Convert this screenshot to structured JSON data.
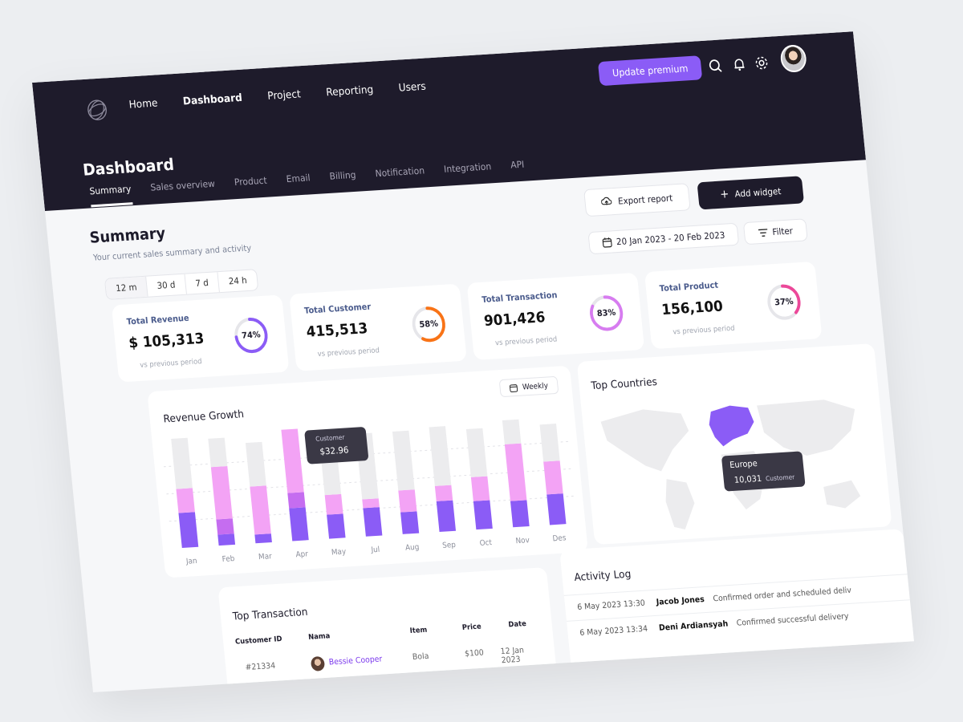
{
  "nav": {
    "items": [
      "Home",
      "Dashboard",
      "Project",
      "Reporting",
      "Users"
    ],
    "active": 1,
    "premium_label": "Update premium",
    "icons": [
      "search-icon",
      "bell-icon",
      "gear-icon"
    ]
  },
  "page": {
    "title": "Dashboard",
    "tabs": [
      "Summary",
      "Sales overview",
      "Product",
      "Email",
      "Billing",
      "Notification",
      "Integration",
      "API"
    ],
    "active_tab": 0
  },
  "summary": {
    "title": "Summary",
    "subtitle": "Your current sales summary and activity",
    "export_label": "Export report",
    "add_widget_label": "Add widget",
    "date_range": "20 Jan 2023 - 20 Feb 2023",
    "filter_label": "Filter",
    "periods": [
      "12 m",
      "30 d",
      "7 d",
      "24 h"
    ],
    "active_period": 0
  },
  "stats": [
    {
      "label": "Total Revenue",
      "value": "$ 105,313",
      "compare": "vs previous period",
      "percent": "74%",
      "fraction": 0.74,
      "color": "#8b5cf6"
    },
    {
      "label": "Total Customer",
      "value": "415,513",
      "compare": "vs previous period",
      "percent": "58%",
      "fraction": 0.58,
      "color": "#f97316"
    },
    {
      "label": "Total Transaction",
      "value": "901,426",
      "compare": "vs previous period",
      "percent": "83%",
      "fraction": 0.83,
      "color": "#d77cf0"
    },
    {
      "label": "Total Product",
      "value": "156,100",
      "compare": "vs previous period",
      "percent": "37%",
      "fraction": 0.37,
      "color": "#ec4899"
    }
  ],
  "revenue": {
    "title": "Revenue Growth",
    "weekly_label": "Weekly",
    "tooltip_label": "Customer",
    "tooltip_value": "$32.96"
  },
  "chart_data": {
    "type": "bar",
    "stacked": true,
    "title": "Revenue Growth",
    "categories": [
      "Jan",
      "Feb",
      "Mar",
      "Apr",
      "May",
      "Jul",
      "Aug",
      "Sep",
      "Oct",
      "Nov",
      "Des"
    ],
    "ylim": [
      0,
      100
    ],
    "grid": true,
    "series": [
      {
        "values": [
          32,
          10,
          8,
          30,
          22,
          26,
          20,
          28,
          26,
          24,
          28
        ],
        "color": "#8b5cf6"
      },
      {
        "values": [
          0,
          14,
          0,
          14,
          0,
          0,
          0,
          0,
          0,
          0,
          0
        ],
        "color": "#c56df0"
      },
      {
        "values": [
          22,
          48,
          44,
          58,
          18,
          8,
          20,
          14,
          22,
          52,
          30
        ],
        "color": "#f3a3f5"
      },
      {
        "values": [
          46,
          26,
          40,
          0,
          52,
          60,
          54,
          54,
          44,
          22,
          34
        ],
        "color": "#ececee"
      }
    ]
  },
  "countries": {
    "title": "Top Countries",
    "tooltip_region": "Europe",
    "tooltip_value": "10,031",
    "tooltip_label": "Customer",
    "highlight_color": "#8b5cf6"
  },
  "transaction": {
    "title": "Top Transaction",
    "columns": [
      "Customer ID",
      "Nama",
      "Item",
      "Price",
      "Date"
    ],
    "rows": [
      {
        "id": "#21334",
        "name": "Bessie Cooper",
        "item": "Bola",
        "price": "$100",
        "date": "12 Jan 2023"
      }
    ]
  },
  "activity": {
    "title": "Activity Log",
    "rows": [
      {
        "time": "6 May 2023 13:30",
        "who": "Jacob Jones",
        "what": "Confirmed order and scheduled deliv"
      },
      {
        "time": "6 May 2023 13:34",
        "who": "Deni Ardiansyah",
        "what": "Confirmed successful delivery"
      }
    ]
  }
}
